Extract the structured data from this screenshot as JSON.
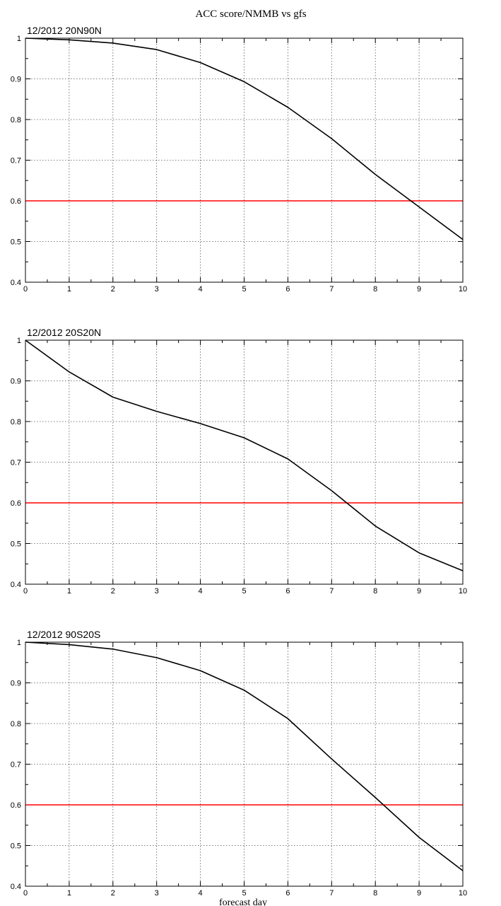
{
  "figure": {
    "title": "ACC score/NMMB vs gfs",
    "xlabel": "forecast day"
  },
  "chart_data": [
    {
      "type": "line",
      "title": "12/2012 20N90N",
      "x": [
        0,
        1,
        2,
        3,
        4,
        5,
        6,
        7,
        8,
        9,
        10
      ],
      "series": [
        {
          "name": "",
          "color": "#000000",
          "values": [
            1.0,
            0.996,
            0.988,
            0.972,
            0.94,
            0.893,
            0.83,
            0.753,
            0.665,
            0.585,
            0.505
          ]
        }
      ],
      "reference_line": {
        "y": 0.6,
        "color": "#ff0000"
      },
      "xlim": [
        0,
        10
      ],
      "ylim": [
        0.4,
        1.0
      ],
      "x_ticks": [
        "0",
        "1",
        "2",
        "3",
        "4",
        "5",
        "6",
        "7",
        "8",
        "9",
        "10"
      ],
      "y_ticks": [
        "0.4",
        "0.5",
        "0.6",
        "0.7",
        "0.8",
        "0.9",
        "1"
      ],
      "grid": true
    },
    {
      "type": "line",
      "title": "12/2012 20S20N",
      "x": [
        0,
        1,
        2,
        3,
        4,
        5,
        6,
        7,
        8,
        9,
        10
      ],
      "series": [
        {
          "name": "",
          "color": "#000000",
          "values": [
            1.0,
            0.922,
            0.86,
            0.825,
            0.795,
            0.76,
            0.708,
            0.63,
            0.543,
            0.477,
            0.433
          ]
        }
      ],
      "reference_line": {
        "y": 0.6,
        "color": "#ff0000"
      },
      "xlim": [
        0,
        10
      ],
      "ylim": [
        0.4,
        1.0
      ],
      "x_ticks": [
        "0",
        "1",
        "2",
        "3",
        "4",
        "5",
        "6",
        "7",
        "8",
        "9",
        "10"
      ],
      "y_ticks": [
        "0.4",
        "0.5",
        "0.6",
        "0.7",
        "0.8",
        "0.9",
        "1"
      ],
      "grid": true
    },
    {
      "type": "line",
      "title": "12/2012 90S20S",
      "x": [
        0,
        1,
        2,
        3,
        4,
        5,
        6,
        7,
        8,
        9,
        10
      ],
      "series": [
        {
          "name": "",
          "color": "#000000",
          "values": [
            1.0,
            0.994,
            0.983,
            0.962,
            0.93,
            0.882,
            0.812,
            0.713,
            0.618,
            0.52,
            0.438
          ]
        }
      ],
      "reference_line": {
        "y": 0.6,
        "color": "#ff0000"
      },
      "xlim": [
        0,
        10
      ],
      "ylim": [
        0.4,
        1.0
      ],
      "x_ticks": [
        "0",
        "1",
        "2",
        "3",
        "4",
        "5",
        "6",
        "7",
        "8",
        "9",
        "10"
      ],
      "y_ticks": [
        "0.4",
        "0.5",
        "0.6",
        "0.7",
        "0.8",
        "0.9",
        "1"
      ],
      "grid": true
    }
  ]
}
